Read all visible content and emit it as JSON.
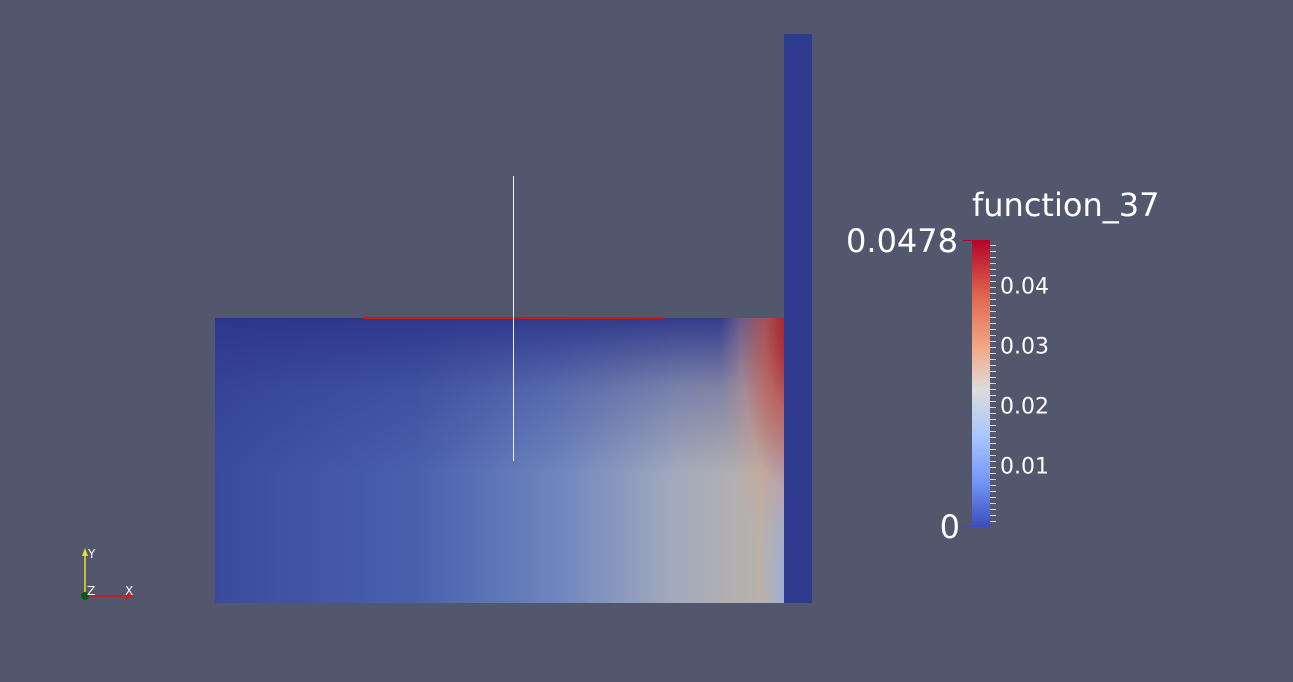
{
  "scalar_bar": {
    "title": "function_37",
    "range_max_label": "0.0478",
    "range_min_label": "0",
    "range": [
      0,
      0.0478
    ],
    "colormap": "Cool to Warm",
    "colors": {
      "min": "#3b4cc0",
      "mid": "#dddcdb",
      "max": "#b40426"
    },
    "tick_labels": [
      {
        "value": 0.04,
        "label": "0.04"
      },
      {
        "value": 0.03,
        "label": "0.03"
      },
      {
        "value": 0.02,
        "label": "0.02"
      },
      {
        "value": 0.01,
        "label": "0.01"
      }
    ]
  },
  "axes": {
    "x": "X",
    "y": "Y",
    "z": "Z",
    "colors": {
      "x": "#e01010",
      "y": "#e8e020",
      "z": "#0a5a10"
    }
  },
  "background": "#52576e"
}
